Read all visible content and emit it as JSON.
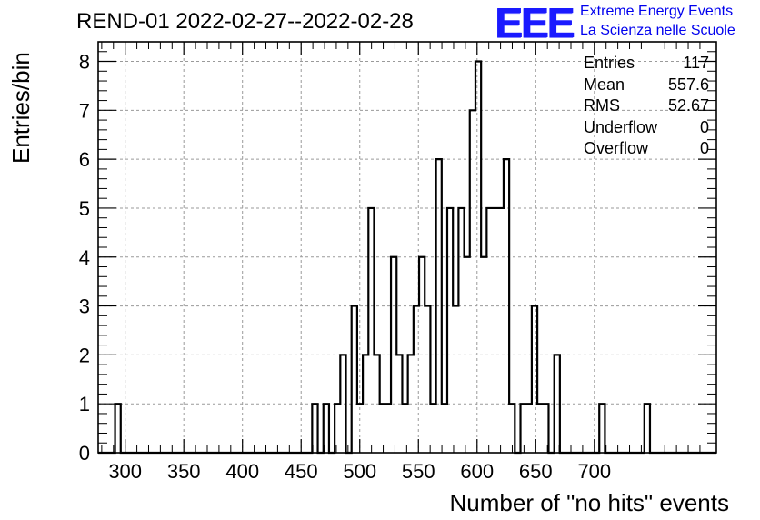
{
  "title": "REND-01 2022-02-27--2022-02-28",
  "logo": {
    "mark": "EEE",
    "line1": "Extreme Energy Events",
    "line2": "La Scienza nelle Scuole"
  },
  "stats": [
    {
      "label": "Entries",
      "value": "117"
    },
    {
      "label": "Mean",
      "value": "557.6"
    },
    {
      "label": "RMS",
      "value": "52.67"
    },
    {
      "label": "Underflow",
      "value": "0"
    },
    {
      "label": "Overflow",
      "value": "0"
    }
  ],
  "chart_data": {
    "type": "bar",
    "title": "REND-01 2022-02-27--2022-02-28",
    "xlabel": "Number of \"no hits\" events",
    "ylabel": "Entries/bin",
    "xlim": [
      277,
      804
    ],
    "ylim": [
      0,
      8.4
    ],
    "grid": true,
    "legend": "top-right",
    "bin_width": 4.8,
    "bin_start": 277.0,
    "counts": [
      0,
      0,
      0,
      1,
      0,
      0,
      0,
      0,
      0,
      0,
      0,
      0,
      0,
      0,
      0,
      0,
      0,
      0,
      0,
      0,
      0,
      0,
      0,
      0,
      0,
      0,
      0,
      0,
      0,
      0,
      0,
      0,
      0,
      0,
      0,
      0,
      0,
      0,
      1,
      0,
      1,
      0,
      1,
      2,
      0,
      3,
      1,
      2,
      5,
      2,
      1,
      1,
      4,
      2,
      1,
      2,
      3,
      4,
      3,
      1,
      6,
      1,
      5,
      3,
      5,
      4,
      7,
      8,
      4,
      5,
      5,
      5,
      6,
      1,
      0,
      1,
      1,
      3,
      1,
      1,
      0,
      2,
      0,
      0,
      0,
      0,
      0,
      0,
      0,
      1,
      0,
      0,
      0,
      0,
      0,
      0,
      0,
      1,
      0,
      0,
      0,
      0,
      0,
      0,
      0,
      0,
      0,
      0,
      0,
      0
    ],
    "xticks": [
      300,
      350,
      400,
      450,
      500,
      550,
      600,
      650,
      700
    ],
    "yticks": [
      0,
      1,
      2,
      3,
      4,
      5,
      6,
      7,
      8
    ],
    "line_color": "#000000"
  }
}
